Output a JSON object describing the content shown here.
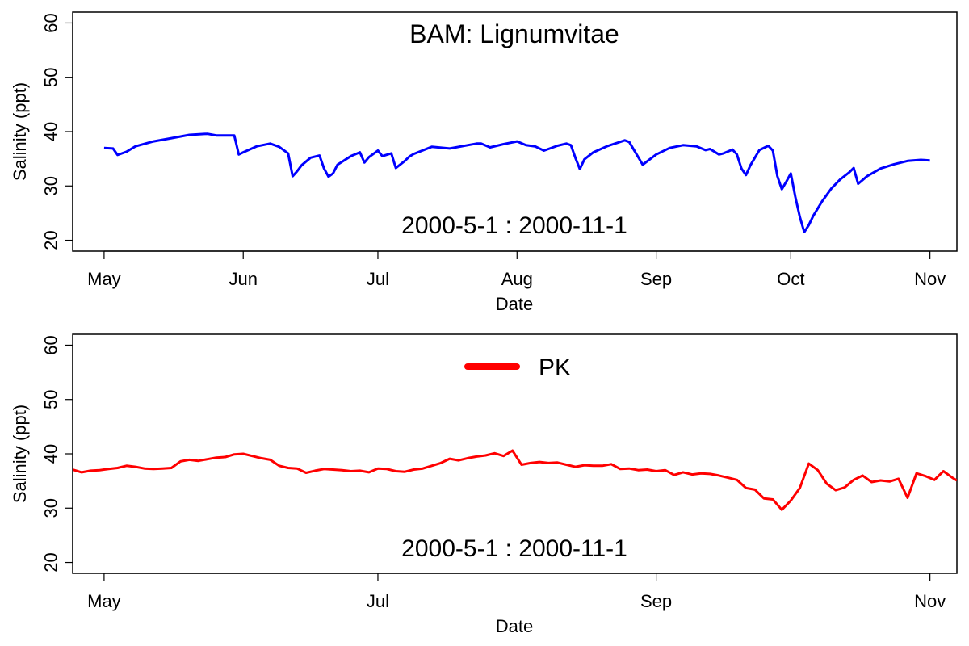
{
  "chart_data": [
    {
      "type": "line",
      "title": "BAM: Lignumvitae",
      "annotation": "2000-5-1  :  2000-11-1",
      "xlabel": "Date",
      "ylabel": "Salinity (ppt)",
      "xlim": [
        "2000-04-24",
        "2000-11-07"
      ],
      "ylim": [
        18,
        62
      ],
      "xticks": [
        {
          "date": "2000-05-01",
          "label": "May"
        },
        {
          "date": "2000-06-01",
          "label": "Jun"
        },
        {
          "date": "2000-07-01",
          "label": "Jul"
        },
        {
          "date": "2000-08-01",
          "label": "Aug"
        },
        {
          "date": "2000-09-01",
          "label": "Sep"
        },
        {
          "date": "2000-10-01",
          "label": "Oct"
        },
        {
          "date": "2000-11-01",
          "label": "Nov"
        }
      ],
      "yticks": [
        20,
        30,
        40,
        50,
        60
      ],
      "series": [
        {
          "color": "#0000ff",
          "x": [
            "2000-05-01",
            "2000-05-03",
            "2000-05-04",
            "2000-05-06",
            "2000-05-08",
            "2000-05-12",
            "2000-05-16",
            "2000-05-20",
            "2000-05-24",
            "2000-05-26",
            "2000-05-30",
            "2000-05-31",
            "2000-06-01",
            "2000-06-04",
            "2000-06-07",
            "2000-06-09",
            "2000-06-11",
            "2000-06-12",
            "2000-06-13",
            "2000-06-14",
            "2000-06-16",
            "2000-06-18",
            "2000-06-19",
            "2000-06-20",
            "2000-06-21",
            "2000-06-22",
            "2000-06-25",
            "2000-06-27",
            "2000-06-28",
            "2000-06-29",
            "2000-07-01",
            "2000-07-02",
            "2000-07-04",
            "2000-07-05",
            "2000-07-07",
            "2000-07-08",
            "2000-07-09",
            "2000-07-13",
            "2000-07-17",
            "2000-07-21",
            "2000-07-23",
            "2000-07-24",
            "2000-07-26",
            "2000-07-29",
            "2000-08-01",
            "2000-08-03",
            "2000-08-05",
            "2000-08-07",
            "2000-08-10",
            "2000-08-12",
            "2000-08-13",
            "2000-08-14",
            "2000-08-15",
            "2000-08-16",
            "2000-08-18",
            "2000-08-21",
            "2000-08-25",
            "2000-08-26",
            "2000-08-28",
            "2000-08-29",
            "2000-09-01",
            "2000-09-04",
            "2000-09-07",
            "2000-09-10",
            "2000-09-12",
            "2000-09-13",
            "2000-09-15",
            "2000-09-16",
            "2000-09-18",
            "2000-09-19",
            "2000-09-20",
            "2000-09-21",
            "2000-09-22",
            "2000-09-24",
            "2000-09-26",
            "2000-09-27",
            "2000-09-28",
            "2000-09-29",
            "2000-09-30",
            "2000-10-01",
            "2000-10-02",
            "2000-10-03",
            "2000-10-04",
            "2000-10-05",
            "2000-10-06",
            "2000-10-08",
            "2000-10-10",
            "2000-10-12",
            "2000-10-14",
            "2000-10-15",
            "2000-10-16",
            "2000-10-18",
            "2000-10-21",
            "2000-10-24",
            "2000-10-27",
            "2000-10-30",
            "2000-11-01"
          ],
          "y": [
            37.0,
            36.9,
            35.7,
            36.3,
            37.3,
            38.2,
            38.8,
            39.4,
            39.6,
            39.3,
            39.3,
            35.8,
            36.2,
            37.3,
            37.8,
            37.2,
            36.0,
            31.8,
            32.7,
            33.8,
            35.2,
            35.6,
            33.2,
            31.7,
            32.3,
            33.9,
            35.5,
            36.2,
            34.3,
            35.3,
            36.5,
            35.5,
            36.0,
            33.3,
            34.6,
            35.4,
            35.9,
            37.2,
            36.9,
            37.5,
            37.8,
            37.8,
            37.1,
            37.7,
            38.2,
            37.5,
            37.3,
            36.5,
            37.4,
            37.8,
            37.5,
            35.2,
            33.1,
            34.9,
            36.2,
            37.3,
            38.4,
            38.1,
            35.3,
            33.9,
            35.8,
            37.0,
            37.5,
            37.3,
            36.6,
            36.8,
            35.8,
            36.0,
            36.7,
            35.8,
            33.2,
            32.0,
            33.8,
            36.6,
            37.4,
            36.5,
            31.8,
            29.4,
            30.8,
            32.3,
            28.0,
            24.3,
            21.5,
            22.8,
            24.5,
            27.2,
            29.5,
            31.2,
            32.5,
            33.3,
            30.4,
            31.8,
            33.2,
            34.0,
            34.6,
            34.8,
            34.7
          ]
        }
      ]
    },
    {
      "type": "line",
      "title": "",
      "annotation": "2000-5-1  :  2000-11-1",
      "xlabel": "Date",
      "ylabel": "Salinity (ppt)",
      "xlim": [
        "2000-04-24",
        "2000-11-07"
      ],
      "ylim": [
        18,
        62
      ],
      "xticks": [
        {
          "date": "2000-05-01",
          "label": "May"
        },
        {
          "date": "2000-07-01",
          "label": "Jul"
        },
        {
          "date": "2000-09-01",
          "label": "Sep"
        },
        {
          "date": "2000-11-01",
          "label": "Nov"
        }
      ],
      "yticks": [
        20,
        30,
        40,
        50,
        60
      ],
      "legend": {
        "position": "top-center",
        "entries": [
          {
            "label": "PK",
            "color": "#ff0000"
          }
        ]
      },
      "series": [
        {
          "name": "PK",
          "color": "#ff0000",
          "x": [
            "2000-04-24",
            "2000-04-26",
            "2000-04-28",
            "2000-04-30",
            "2000-05-02",
            "2000-05-04",
            "2000-05-06",
            "2000-05-08",
            "2000-05-10",
            "2000-05-12",
            "2000-05-14",
            "2000-05-16",
            "2000-05-18",
            "2000-05-20",
            "2000-05-22",
            "2000-05-24",
            "2000-05-26",
            "2000-05-28",
            "2000-05-30",
            "2000-06-01",
            "2000-06-03",
            "2000-06-05",
            "2000-06-07",
            "2000-06-09",
            "2000-06-11",
            "2000-06-13",
            "2000-06-15",
            "2000-06-17",
            "2000-06-19",
            "2000-06-21",
            "2000-06-23",
            "2000-06-25",
            "2000-06-27",
            "2000-06-29",
            "2000-07-01",
            "2000-07-03",
            "2000-07-05",
            "2000-07-07",
            "2000-07-09",
            "2000-07-11",
            "2000-07-13",
            "2000-07-15",
            "2000-07-17",
            "2000-07-19",
            "2000-07-21",
            "2000-07-23",
            "2000-07-25",
            "2000-07-27",
            "2000-07-29",
            "2000-07-31",
            "2000-08-02",
            "2000-08-04",
            "2000-08-06",
            "2000-08-08",
            "2000-08-10",
            "2000-08-12",
            "2000-08-14",
            "2000-08-16",
            "2000-08-18",
            "2000-08-20",
            "2000-08-22",
            "2000-08-24",
            "2000-08-26",
            "2000-08-28",
            "2000-08-30",
            "2000-09-01",
            "2000-09-03",
            "2000-09-05",
            "2000-09-07",
            "2000-09-09",
            "2000-09-11",
            "2000-09-13",
            "2000-09-15",
            "2000-09-17",
            "2000-09-19",
            "2000-09-21",
            "2000-09-23",
            "2000-09-25",
            "2000-09-27",
            "2000-09-29",
            "2000-10-01",
            "2000-10-03",
            "2000-10-05",
            "2000-10-07",
            "2000-10-09",
            "2000-10-11",
            "2000-10-13",
            "2000-10-15",
            "2000-10-17",
            "2000-10-19",
            "2000-10-21",
            "2000-10-23",
            "2000-10-25",
            "2000-10-27",
            "2000-10-29",
            "2000-10-31",
            "2000-11-02",
            "2000-11-04",
            "2000-11-06",
            "2000-11-07"
          ],
          "y": [
            37.1,
            36.6,
            36.9,
            37.0,
            37.2,
            37.4,
            37.8,
            37.6,
            37.3,
            37.2,
            37.3,
            37.4,
            38.6,
            38.9,
            38.7,
            39.0,
            39.3,
            39.4,
            39.9,
            40.0,
            39.6,
            39.2,
            38.9,
            37.8,
            37.4,
            37.3,
            36.5,
            36.9,
            37.2,
            37.1,
            37.0,
            36.8,
            36.9,
            36.6,
            37.3,
            37.2,
            36.8,
            36.7,
            37.1,
            37.3,
            37.8,
            38.3,
            39.1,
            38.8,
            39.2,
            39.5,
            39.7,
            40.1,
            39.6,
            40.6,
            38.0,
            38.3,
            38.5,
            38.3,
            38.4,
            38.0,
            37.6,
            37.9,
            37.8,
            37.8,
            38.1,
            37.2,
            37.3,
            37.0,
            37.1,
            36.8,
            37.0,
            36.1,
            36.6,
            36.2,
            36.4,
            36.3,
            36.0,
            35.6,
            35.2,
            33.7,
            33.4,
            31.8,
            31.6,
            29.7,
            31.4,
            33.7,
            38.2,
            37.0,
            34.5,
            33.3,
            33.8,
            35.2,
            36.0,
            34.8,
            35.1,
            34.9,
            35.4,
            31.9,
            36.4,
            35.9,
            35.2,
            36.8,
            35.6,
            35.1
          ]
        }
      ]
    }
  ]
}
